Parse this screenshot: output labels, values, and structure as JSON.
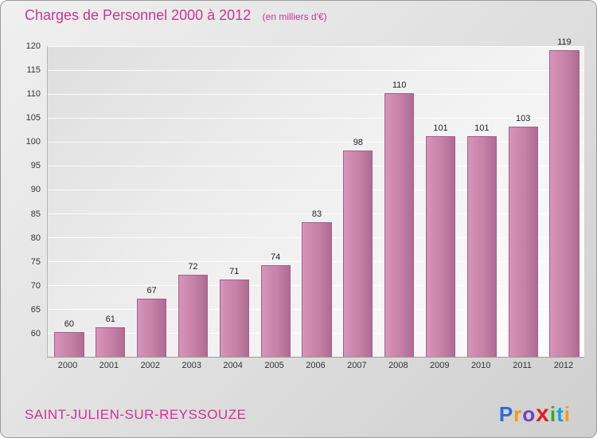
{
  "header": {
    "title": "Charges de Personnel 2000 à 2012",
    "subtitle": "(en milliers d'€)"
  },
  "chart_data": {
    "type": "bar",
    "title": "Charges de Personnel 2000 à 2012",
    "subtitle": "(en milliers d'€)",
    "categories": [
      "2000",
      "2001",
      "2002",
      "2003",
      "2004",
      "2005",
      "2006",
      "2007",
      "2008",
      "2009",
      "2010",
      "2011",
      "2012"
    ],
    "values": [
      60,
      61,
      67,
      72,
      71,
      74,
      83,
      98,
      110,
      101,
      101,
      103,
      119
    ],
    "xlabel": "",
    "ylabel": "",
    "ylim": [
      55,
      120
    ],
    "yticks": [
      60,
      65,
      70,
      75,
      80,
      85,
      90,
      95,
      100,
      105,
      110,
      115,
      120
    ],
    "grid": true,
    "legend": false,
    "bar_color": "#c581a6",
    "bar_border_color": "#a2618a",
    "value_label_color": "#222222",
    "title_color": "#cc3399"
  },
  "footer": {
    "commune": "SAINT-JULIEN-SUR-REYSSOUZE",
    "logo": {
      "name": "Proxiti",
      "letters": [
        {
          "ch": "P",
          "color": "#2e6bd6",
          "big": false
        },
        {
          "ch": "r",
          "color": "#f39c12",
          "big": false
        },
        {
          "ch": "o",
          "color": "#6f42c1",
          "big": false
        },
        {
          "ch": "x",
          "color": "#e02020",
          "big": true
        },
        {
          "ch": "i",
          "color": "#2eab2e",
          "big": false
        },
        {
          "ch": "t",
          "color": "#1f9bd7",
          "big": false
        },
        {
          "ch": "i",
          "color": "#f39c12",
          "big": false
        }
      ]
    }
  }
}
